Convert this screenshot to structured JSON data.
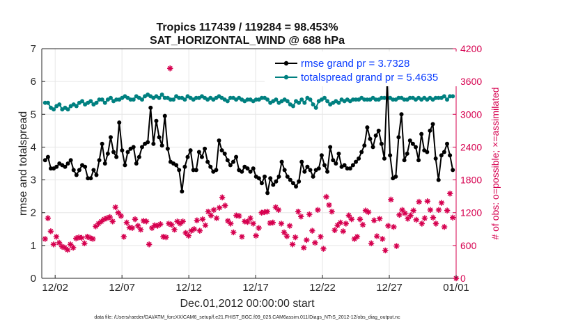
{
  "chart_data": {
    "type": "line",
    "title": "Tropics 117439 / 119284 = 98.453%",
    "subtitle": "SAT_HORIZONTAL_WIND @ 688 hPa",
    "xlabel": "Dec.01,2012 00:00:00 start",
    "ylabel": "rmse and totalspread",
    "y2label": "# of obs: o=possible; ×=assimilated",
    "xlim": [
      0,
      31
    ],
    "ylim": [
      0,
      7
    ],
    "y2lim": [
      0,
      4200
    ],
    "x_ticks": [
      {
        "day": 1,
        "label": "12/02"
      },
      {
        "day": 6,
        "label": "12/07"
      },
      {
        "day": 11,
        "label": "12/12"
      },
      {
        "day": 16,
        "label": "12/17"
      },
      {
        "day": 21,
        "label": "12/22"
      },
      {
        "day": 26,
        "label": "12/27"
      },
      {
        "day": 31,
        "label": "01/01"
      }
    ],
    "y_ticks": [
      "0",
      "1",
      "2",
      "3",
      "4",
      "5",
      "6",
      "7"
    ],
    "y2_ticks": [
      "0",
      "600",
      "1200",
      "1800",
      "2400",
      "3000",
      "3600",
      "4200"
    ],
    "legend_location": "top-right",
    "colors": {
      "rmse": "#000000",
      "spread": "#008080",
      "obs": "#d6004f",
      "legend_text": "#0a3cff"
    },
    "series": [
      {
        "name": "rmse grand pr = 3.7328",
        "values": [
          3.6,
          3.7,
          3.35,
          3.35,
          3.4,
          3.5,
          3.45,
          3.4,
          3.5,
          3.6,
          3.3,
          3.15,
          3.3,
          3.45,
          3.4,
          3.05,
          3.05,
          3.3,
          3.15,
          3.6,
          4.1,
          3.5,
          3.8,
          4.3,
          3.85,
          3.7,
          4.75,
          3.9,
          3.45,
          3.85,
          3.95,
          4.0,
          3.5,
          3.7,
          4.0,
          4.1,
          4.15,
          5.2,
          4.1,
          4.8,
          4.3,
          4.05,
          4.95,
          3.95,
          3.55,
          3.5,
          3.45,
          3.3,
          2.65,
          3.4,
          3.7,
          3.9,
          3.3,
          3.3,
          3.85,
          3.7,
          3.95,
          3.55,
          3.4,
          3.25,
          3.3,
          4.2,
          3.9,
          3.8,
          3.6,
          3.45,
          3.55,
          3.7,
          3.3,
          3.25,
          3.4,
          3.35,
          3.25,
          3.35,
          3.1,
          3.05,
          2.9,
          3.1,
          2.6,
          3.05,
          2.85,
          2.95,
          3.1,
          3.55,
          3.3,
          3.1,
          3.0,
          2.9,
          2.8,
          2.95,
          3.55,
          3.25,
          3.4,
          3.3,
          3.1,
          3.3,
          3.35,
          3.75,
          3.45,
          3.25,
          4.0,
          3.6,
          3.5,
          3.8,
          3.4,
          3.45,
          3.35,
          3.35,
          3.45,
          3.55,
          3.65,
          3.85,
          4.05,
          4.6,
          4.25,
          4.0,
          4.35,
          4.5,
          4.1,
          3.65,
          6.0,
          3.75,
          3.05,
          3.1,
          4.3,
          5.0,
          3.6,
          3.8,
          4.2,
          4.1,
          4.0,
          3.6,
          4.4,
          3.9,
          3.85,
          4.5,
          4.7,
          3.65,
          3.0,
          3.75,
          3.85,
          4.1,
          3.75,
          3.3
        ],
        "marker": "filled circle"
      },
      {
        "name": "totalspread grand pr = 5.4635",
        "values": [
          5.35,
          5.35,
          5.2,
          5.15,
          5.25,
          5.3,
          5.15,
          5.2,
          5.15,
          5.25,
          5.3,
          5.25,
          5.35,
          5.4,
          5.3,
          5.35,
          5.4,
          5.3,
          5.35,
          5.45,
          5.45,
          5.35,
          5.45,
          5.5,
          5.4,
          5.45,
          5.45,
          5.5,
          5.55,
          5.5,
          5.45,
          5.45,
          5.55,
          5.5,
          5.45,
          5.55,
          5.6,
          5.55,
          5.5,
          5.55,
          5.5,
          5.6,
          5.5,
          5.5,
          5.45,
          5.45,
          5.55,
          5.5,
          5.5,
          5.45,
          5.55,
          5.5,
          5.45,
          5.5,
          5.5,
          5.55,
          5.5,
          5.45,
          5.5,
          5.45,
          5.5,
          5.55,
          5.5,
          5.45,
          5.4,
          5.5,
          5.5,
          5.45,
          5.5,
          5.45,
          5.4,
          5.45,
          5.45,
          5.4,
          5.45,
          5.45,
          5.5,
          5.5,
          5.45,
          5.35,
          5.4,
          5.45,
          5.35,
          5.4,
          5.45,
          5.4,
          5.3,
          5.25,
          5.4,
          5.35,
          5.45,
          5.35,
          5.5,
          5.45,
          5.3,
          5.2,
          5.4,
          5.45,
          5.5,
          5.4,
          5.3,
          5.35,
          5.4,
          5.35,
          5.45,
          5.4,
          5.45,
          5.4,
          5.45,
          5.45,
          5.45,
          5.5,
          5.45,
          5.45,
          5.45,
          5.5,
          5.45,
          5.45,
          5.5,
          5.5,
          5.5,
          5.5,
          5.45,
          5.45,
          5.5,
          5.5,
          5.45,
          5.45,
          5.5,
          5.5,
          5.45,
          5.5,
          5.45,
          5.5,
          5.45,
          5.5,
          5.45,
          5.5,
          5.5,
          5.5,
          5.55,
          5.45,
          5.55,
          5.55
        ],
        "marker": "filled circle"
      },
      {
        "name": "# of obs (possible / assimilated)",
        "axis": "right",
        "values": [
          720,
          1100,
          860,
          620,
          760,
          650,
          580,
          560,
          520,
          620,
          560,
          730,
          750,
          740,
          640,
          760,
          740,
          720,
          950,
          1000,
          1040,
          1080,
          1100,
          1120,
          1040,
          1300,
          1200,
          1140,
          760,
          1020,
          930,
          920,
          1080,
          960,
          890,
          1050,
          1040,
          620,
          920,
          970,
          960,
          990,
          760,
          750,
          1000,
          980,
          890,
          1040,
          1000,
          1040,
          830,
          780,
          870,
          900,
          1060,
          870,
          1080,
          970,
          1220,
          1150,
          1250,
          1100,
          1290,
          1480,
          1330,
          1050,
          1000,
          840,
          1150,
          1140,
          760,
          1040,
          1030,
          1100,
          1000,
          780,
          920,
          1200,
          1210,
          1220,
          1010,
          1020,
          1300,
          1250,
          1000,
          840,
          770,
          960,
          620,
          750,
          1220,
          1130,
          560,
          700,
          1170,
          870,
          650,
          1250,
          760,
          540,
          1490,
          1340,
          1220,
          880,
          970,
          1020,
          860,
          1000,
          1150,
          1080,
          720,
          760,
          1080,
          980,
          1240,
          1210,
          640,
          1060,
          770,
          1090,
          720,
          510,
          960,
          1440,
          940,
          590,
          1160,
          1250,
          1190,
          1090,
          1150,
          1240,
          1070,
          1400,
          1000,
          1100,
          1410,
          1250,
          1110,
          1000,
          1250,
          1380,
          940,
          1240,
          1550,
          1110
        ],
        "marker": "asterisk"
      }
    ],
    "outliers": [
      {
        "day": 9.6,
        "value": 3840,
        "axis": "right"
      },
      {
        "day": 31,
        "value": 0,
        "axis": "right"
      }
    ]
  },
  "footer": "data file: /Users/raeder/DAI/ATM_forcXX/CAM6_setup/f.e21.FHIST_BGC.f09_025.CAM6assim.011/Diags_NTrS_2012-12/obs_diag_output.nc"
}
